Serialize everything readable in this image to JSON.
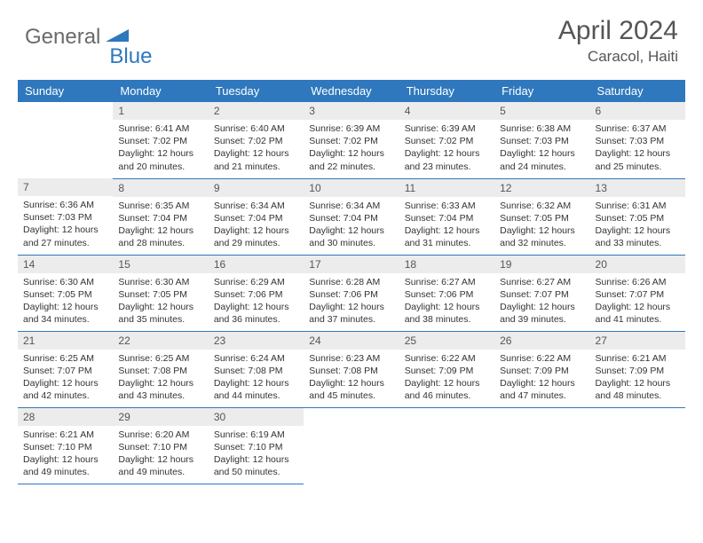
{
  "brand": {
    "part1": "General",
    "part2": "Blue"
  },
  "title": "April 2024",
  "location": "Caracol, Haiti",
  "weekdays": [
    "Sunday",
    "Monday",
    "Tuesday",
    "Wednesday",
    "Thursday",
    "Friday",
    "Saturday"
  ],
  "colors": {
    "header_bg": "#2f78bd",
    "header_text": "#ffffff",
    "daynum_bg": "#ececec",
    "border": "#2f78bd",
    "logo_gray": "#6a6a6a",
    "logo_blue": "#2f78bd"
  },
  "weeks": [
    [
      null,
      {
        "n": "1",
        "sr": "6:41 AM",
        "ss": "7:02 PM",
        "dl": "12 hours and 20 minutes."
      },
      {
        "n": "2",
        "sr": "6:40 AM",
        "ss": "7:02 PM",
        "dl": "12 hours and 21 minutes."
      },
      {
        "n": "3",
        "sr": "6:39 AM",
        "ss": "7:02 PM",
        "dl": "12 hours and 22 minutes."
      },
      {
        "n": "4",
        "sr": "6:39 AM",
        "ss": "7:02 PM",
        "dl": "12 hours and 23 minutes."
      },
      {
        "n": "5",
        "sr": "6:38 AM",
        "ss": "7:03 PM",
        "dl": "12 hours and 24 minutes."
      },
      {
        "n": "6",
        "sr": "6:37 AM",
        "ss": "7:03 PM",
        "dl": "12 hours and 25 minutes."
      }
    ],
    [
      {
        "n": "7",
        "sr": "6:36 AM",
        "ss": "7:03 PM",
        "dl": "12 hours and 27 minutes."
      },
      {
        "n": "8",
        "sr": "6:35 AM",
        "ss": "7:04 PM",
        "dl": "12 hours and 28 minutes."
      },
      {
        "n": "9",
        "sr": "6:34 AM",
        "ss": "7:04 PM",
        "dl": "12 hours and 29 minutes."
      },
      {
        "n": "10",
        "sr": "6:34 AM",
        "ss": "7:04 PM",
        "dl": "12 hours and 30 minutes."
      },
      {
        "n": "11",
        "sr": "6:33 AM",
        "ss": "7:04 PM",
        "dl": "12 hours and 31 minutes."
      },
      {
        "n": "12",
        "sr": "6:32 AM",
        "ss": "7:05 PM",
        "dl": "12 hours and 32 minutes."
      },
      {
        "n": "13",
        "sr": "6:31 AM",
        "ss": "7:05 PM",
        "dl": "12 hours and 33 minutes."
      }
    ],
    [
      {
        "n": "14",
        "sr": "6:30 AM",
        "ss": "7:05 PM",
        "dl": "12 hours and 34 minutes."
      },
      {
        "n": "15",
        "sr": "6:30 AM",
        "ss": "7:05 PM",
        "dl": "12 hours and 35 minutes."
      },
      {
        "n": "16",
        "sr": "6:29 AM",
        "ss": "7:06 PM",
        "dl": "12 hours and 36 minutes."
      },
      {
        "n": "17",
        "sr": "6:28 AM",
        "ss": "7:06 PM",
        "dl": "12 hours and 37 minutes."
      },
      {
        "n": "18",
        "sr": "6:27 AM",
        "ss": "7:06 PM",
        "dl": "12 hours and 38 minutes."
      },
      {
        "n": "19",
        "sr": "6:27 AM",
        "ss": "7:07 PM",
        "dl": "12 hours and 39 minutes."
      },
      {
        "n": "20",
        "sr": "6:26 AM",
        "ss": "7:07 PM",
        "dl": "12 hours and 41 minutes."
      }
    ],
    [
      {
        "n": "21",
        "sr": "6:25 AM",
        "ss": "7:07 PM",
        "dl": "12 hours and 42 minutes."
      },
      {
        "n": "22",
        "sr": "6:25 AM",
        "ss": "7:08 PM",
        "dl": "12 hours and 43 minutes."
      },
      {
        "n": "23",
        "sr": "6:24 AM",
        "ss": "7:08 PM",
        "dl": "12 hours and 44 minutes."
      },
      {
        "n": "24",
        "sr": "6:23 AM",
        "ss": "7:08 PM",
        "dl": "12 hours and 45 minutes."
      },
      {
        "n": "25",
        "sr": "6:22 AM",
        "ss": "7:09 PM",
        "dl": "12 hours and 46 minutes."
      },
      {
        "n": "26",
        "sr": "6:22 AM",
        "ss": "7:09 PM",
        "dl": "12 hours and 47 minutes."
      },
      {
        "n": "27",
        "sr": "6:21 AM",
        "ss": "7:09 PM",
        "dl": "12 hours and 48 minutes."
      }
    ],
    [
      {
        "n": "28",
        "sr": "6:21 AM",
        "ss": "7:10 PM",
        "dl": "12 hours and 49 minutes."
      },
      {
        "n": "29",
        "sr": "6:20 AM",
        "ss": "7:10 PM",
        "dl": "12 hours and 49 minutes."
      },
      {
        "n": "30",
        "sr": "6:19 AM",
        "ss": "7:10 PM",
        "dl": "12 hours and 50 minutes."
      },
      null,
      null,
      null,
      null
    ]
  ]
}
